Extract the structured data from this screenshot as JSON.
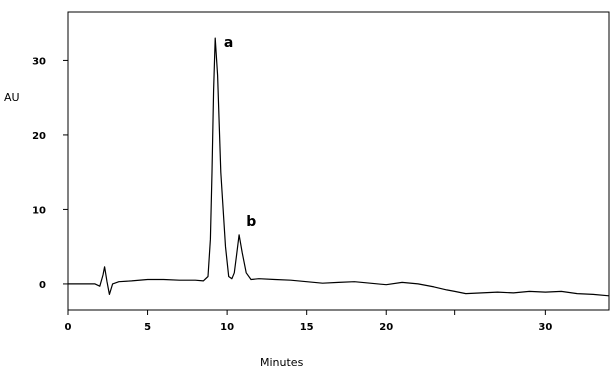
{
  "chart_data": {
    "type": "line",
    "title": "",
    "xlabel": "Minutes",
    "ylabel": "AU",
    "grid": false,
    "legend": "none",
    "xlim": [
      0,
      34
    ],
    "ylim": [
      -3.5,
      36.5
    ],
    "x_ticks": [
      {
        "value": 0,
        "label": "0"
      },
      {
        "value": 5,
        "label": "5"
      },
      {
        "value": 10,
        "label": "10"
      },
      {
        "value": 15,
        "label": "15"
      },
      {
        "value": 20,
        "label": "20"
      },
      {
        "value": 24.3,
        "label": ""
      },
      {
        "value": 30,
        "label": "30"
      }
    ],
    "y_ticks": [
      {
        "value": 0,
        "label": "0"
      },
      {
        "value": 10,
        "label": "10"
      },
      {
        "value": 20,
        "label": "20"
      },
      {
        "value": 30,
        "label": "30"
      }
    ],
    "series": [
      {
        "color": "#000000",
        "x": [
          0,
          1.7,
          2.0,
          2.2,
          2.3,
          2.45,
          2.6,
          2.8,
          3.2,
          4,
          5,
          6,
          7,
          8,
          8.5,
          8.8,
          8.95,
          9.05,
          9.15,
          9.25,
          9.4,
          9.6,
          9.9,
          10.1,
          10.3,
          10.45,
          10.6,
          10.75,
          10.95,
          11.2,
          11.5,
          12,
          13,
          14,
          15,
          16,
          17,
          18,
          19,
          20,
          21,
          22,
          23,
          23.8,
          24.3,
          25,
          27,
          28,
          29,
          30,
          31,
          32,
          33,
          34
        ],
        "y": [
          0,
          0,
          -0.3,
          1.2,
          2.3,
          0.3,
          -1.4,
          0,
          0.3,
          0.4,
          0.6,
          0.6,
          0.5,
          0.5,
          0.4,
          1.0,
          6,
          15,
          26,
          33,
          28,
          15,
          5,
          1.0,
          0.7,
          1.5,
          4.0,
          6.6,
          4.2,
          1.5,
          0.6,
          0.7,
          0.6,
          0.5,
          0.3,
          0.1,
          0.2,
          0.3,
          0.1,
          -0.1,
          0.2,
          0,
          -0.4,
          -0.8,
          -1.0,
          -1.3,
          -1.1,
          -1.2,
          -1.0,
          -1.1,
          -1.0,
          -1.3,
          -1.4,
          -1.6
        ]
      }
    ],
    "annotations": [
      {
        "text": "a",
        "x": 9.8,
        "y": 31.8
      },
      {
        "text": "b",
        "x": 11.2,
        "y": 7.8
      }
    ]
  }
}
